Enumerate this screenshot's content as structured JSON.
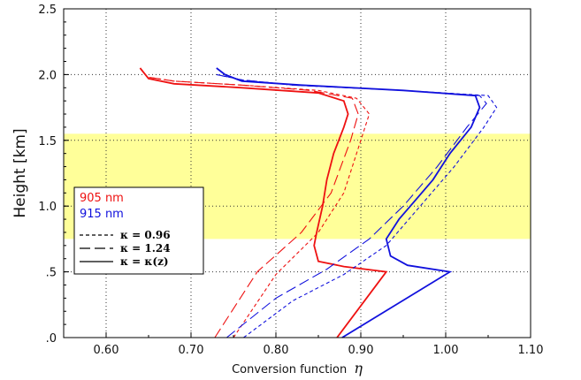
{
  "chart_data": {
    "type": "line",
    "xlabel_text": "Conversion function",
    "xlabel_symbol": "η",
    "ylabel": "Height [km]",
    "xlim": [
      0.55,
      1.1
    ],
    "ylim": [
      0.0,
      2.5
    ],
    "x_ticks": [
      {
        "v": 0.6,
        "label": "0.60"
      },
      {
        "v": 0.7,
        "label": "0.70"
      },
      {
        "v": 0.8,
        "label": "0.80"
      },
      {
        "v": 0.9,
        "label": "0.90"
      },
      {
        "v": 1.0,
        "label": "1.00"
      },
      {
        "v": 1.1,
        "label": "1.10"
      }
    ],
    "y_ticks": [
      {
        "v": 0.0,
        "label": ".0"
      },
      {
        "v": 0.5,
        "label": ".5"
      },
      {
        "v": 1.0,
        "label": "1.0"
      },
      {
        "v": 1.5,
        "label": "1.5"
      },
      {
        "v": 2.0,
        "label": "2.0"
      },
      {
        "v": 2.5,
        "label": "2.5"
      }
    ],
    "grid": "dotted",
    "highlight_band": {
      "ymin": 0.75,
      "ymax": 1.55,
      "color": "#ffff99"
    },
    "colors": {
      "905": "#ee1111",
      "915": "#1111dd"
    },
    "legend": {
      "position": "left-middle",
      "wavelengths": [
        {
          "label": "905 nm",
          "color": "#ee1111"
        },
        {
          "label": "915 nm",
          "color": "#1111dd"
        }
      ],
      "styles": [
        {
          "label": "κ = 0.96",
          "dash": "short"
        },
        {
          "label": "κ = 1.24",
          "dash": "long"
        },
        {
          "label": "κ = κ(z)",
          "dash": "solid"
        }
      ]
    },
    "series": [
      {
        "wavelength": "905",
        "style": "short",
        "points": [
          [
            0.75,
            0.0
          ],
          [
            0.8,
            0.48
          ],
          [
            0.85,
            0.8
          ],
          [
            0.88,
            1.1
          ],
          [
            0.9,
            1.5
          ],
          [
            0.91,
            1.7
          ],
          [
            0.895,
            1.82
          ],
          [
            0.85,
            1.88
          ],
          [
            0.76,
            1.92
          ],
          [
            0.68,
            1.95
          ],
          [
            0.65,
            1.98
          ]
        ]
      },
      {
        "wavelength": "905",
        "style": "long",
        "points": [
          [
            0.728,
            0.0
          ],
          [
            0.778,
            0.5
          ],
          [
            0.83,
            0.8
          ],
          [
            0.865,
            1.1
          ],
          [
            0.888,
            1.5
          ],
          [
            0.897,
            1.7
          ],
          [
            0.89,
            1.82
          ],
          [
            0.84,
            1.88
          ],
          [
            0.76,
            1.92
          ],
          [
            0.68,
            1.95
          ],
          [
            0.65,
            1.98
          ]
        ]
      },
      {
        "wavelength": "905",
        "style": "solid",
        "points": [
          [
            0.872,
            0.0
          ],
          [
            0.93,
            0.5
          ],
          [
            0.88,
            0.54
          ],
          [
            0.85,
            0.58
          ],
          [
            0.845,
            0.7
          ],
          [
            0.848,
            0.8
          ],
          [
            0.855,
            1.0
          ],
          [
            0.86,
            1.2
          ],
          [
            0.868,
            1.4
          ],
          [
            0.88,
            1.6
          ],
          [
            0.885,
            1.7
          ],
          [
            0.88,
            1.8
          ],
          [
            0.85,
            1.86
          ],
          [
            0.76,
            1.9
          ],
          [
            0.68,
            1.93
          ],
          [
            0.65,
            1.97
          ],
          [
            0.64,
            2.05
          ]
        ]
      },
      {
        "wavelength": "915",
        "style": "short",
        "points": [
          [
            0.762,
            0.0
          ],
          [
            0.82,
            0.28
          ],
          [
            0.88,
            0.48
          ],
          [
            0.93,
            0.7
          ],
          [
            0.97,
            1.0
          ],
          [
            1.01,
            1.3
          ],
          [
            1.045,
            1.6
          ],
          [
            1.06,
            1.75
          ],
          [
            1.05,
            1.84
          ],
          [
            0.95,
            1.88
          ],
          [
            0.82,
            1.92
          ],
          [
            0.76,
            1.96
          ],
          [
            0.73,
            2.0
          ]
        ]
      },
      {
        "wavelength": "915",
        "style": "long",
        "points": [
          [
            0.742,
            0.0
          ],
          [
            0.8,
            0.3
          ],
          [
            0.86,
            0.52
          ],
          [
            0.91,
            0.75
          ],
          [
            0.95,
            1.0
          ],
          [
            0.99,
            1.3
          ],
          [
            1.025,
            1.6
          ],
          [
            1.048,
            1.78
          ],
          [
            1.04,
            1.84
          ],
          [
            0.95,
            1.88
          ],
          [
            0.82,
            1.92
          ],
          [
            0.76,
            1.96
          ],
          [
            0.73,
            2.0
          ]
        ]
      },
      {
        "wavelength": "915",
        "style": "solid",
        "points": [
          [
            0.878,
            0.0
          ],
          [
            1.005,
            0.5
          ],
          [
            0.955,
            0.55
          ],
          [
            0.935,
            0.62
          ],
          [
            0.93,
            0.75
          ],
          [
            0.945,
            0.9
          ],
          [
            0.965,
            1.05
          ],
          [
            0.985,
            1.2
          ],
          [
            1.005,
            1.4
          ],
          [
            1.03,
            1.6
          ],
          [
            1.04,
            1.75
          ],
          [
            1.035,
            1.84
          ],
          [
            0.95,
            1.88
          ],
          [
            0.83,
            1.92
          ],
          [
            0.76,
            1.95
          ],
          [
            0.74,
            2.0
          ],
          [
            0.73,
            2.05
          ]
        ]
      }
    ]
  }
}
